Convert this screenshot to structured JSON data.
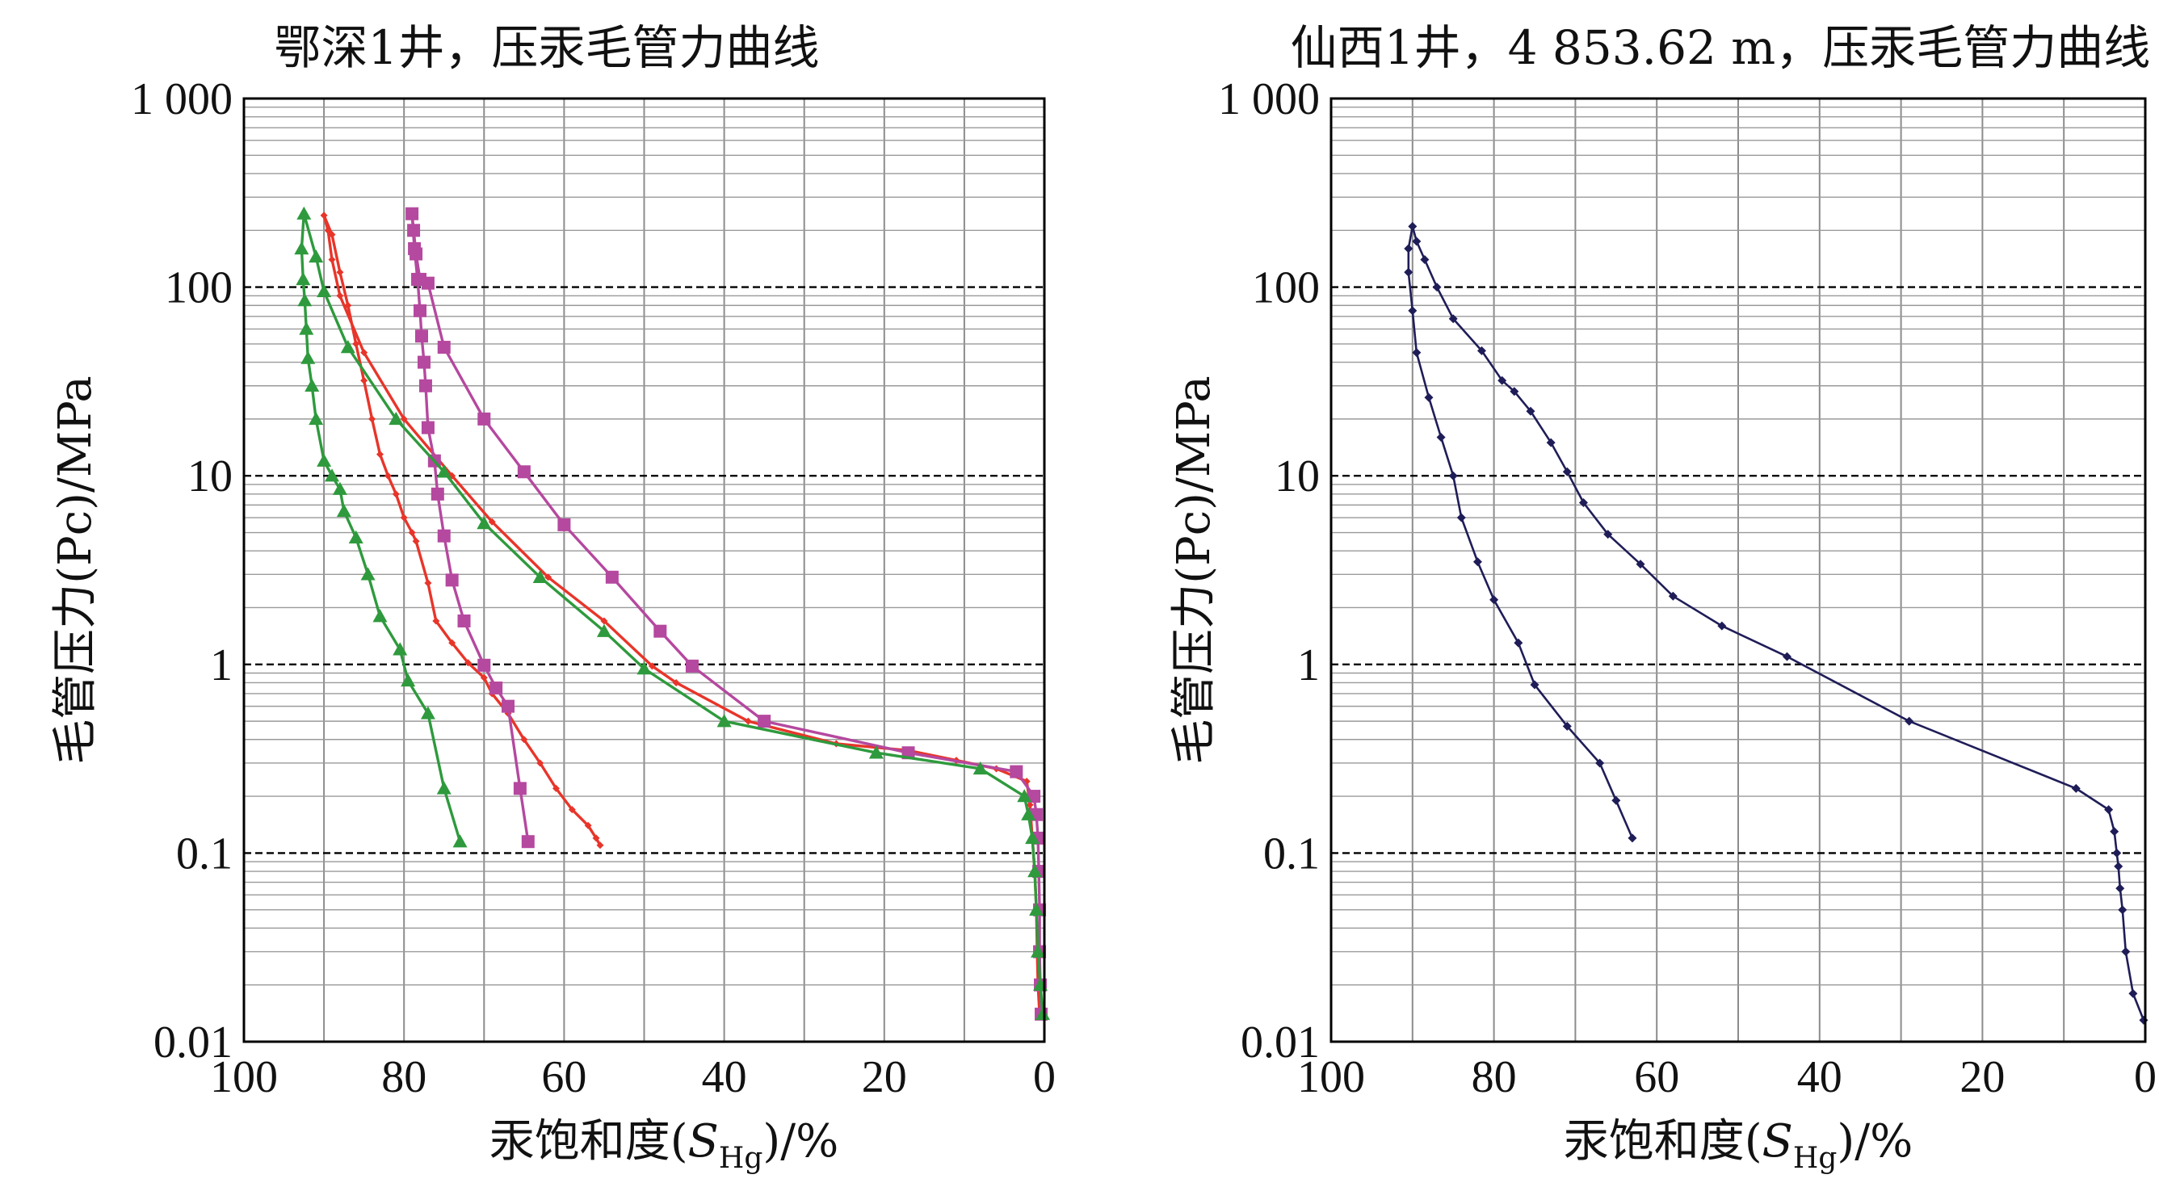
{
  "chart_data": [
    {
      "type": "line",
      "title": "鄂深1井，压汞毛管力曲线",
      "xlabel": {
        "prefix": "汞饱和度(",
        "symbol": "S",
        "subscript": "Hg",
        "suffix": ")/%"
      },
      "ylabel": "毛管压力(Pc)/MPa",
      "x_reversed": true,
      "xlim": [
        100,
        0
      ],
      "x_ticks": [
        100,
        80,
        60,
        40,
        20,
        0
      ],
      "y_scale": "log",
      "ylim": [
        0.01,
        1000
      ],
      "y_ticks": [
        {
          "value": 0.01,
          "label": "0.01"
        },
        {
          "value": 0.1,
          "label": "0.1"
        },
        {
          "value": 1,
          "label": "1"
        },
        {
          "value": 10,
          "label": "10"
        },
        {
          "value": 100,
          "label": "100"
        },
        {
          "value": 1000,
          "label": "1 000"
        }
      ],
      "grid": true,
      "colors": {
        "red": "#e8352a",
        "magenta": "#b5489f",
        "green": "#2e9a3d"
      },
      "series": [
        {
          "color": "red",
          "marker": "diamond",
          "points": [
            [
              0.6,
              0.014
            ],
            [
              0.8,
              0.02
            ],
            [
              0.9,
              0.03
            ],
            [
              1,
              0.05
            ],
            [
              1.2,
              0.08
            ],
            [
              1.5,
              0.12
            ],
            [
              1.8,
              0.18
            ],
            [
              2.2,
              0.24
            ],
            [
              6,
              0.28
            ],
            [
              11,
              0.31
            ],
            [
              17,
              0.35
            ],
            [
              26,
              0.38
            ],
            [
              37,
              0.5
            ],
            [
              46,
              0.8
            ],
            [
              49,
              0.98
            ],
            [
              55,
              1.7
            ],
            [
              62,
              2.9
            ],
            [
              69,
              5.7
            ],
            [
              74,
              10
            ],
            [
              80,
              20
            ],
            [
              85,
              45
            ],
            [
              88,
              90
            ],
            [
              89,
              140
            ],
            [
              89.5,
              200
            ],
            [
              90,
              240
            ],
            [
              89,
              190
            ],
            [
              88,
              120
            ],
            [
              87,
              80
            ],
            [
              86,
              50
            ],
            [
              85,
              32
            ],
            [
              84,
              20
            ],
            [
              83,
              13
            ],
            [
              82,
              10
            ],
            [
              81,
              8
            ],
            [
              80,
              6
            ],
            [
              79,
              5
            ],
            [
              78.5,
              4.5
            ],
            [
              77,
              2.7
            ],
            [
              76,
              1.7
            ],
            [
              74,
              1.3
            ],
            [
              72,
              1.02
            ],
            [
              70,
              0.85
            ],
            [
              69,
              0.7
            ],
            [
              67,
              0.55
            ],
            [
              65,
              0.4
            ],
            [
              63,
              0.3
            ],
            [
              61,
              0.22
            ],
            [
              59,
              0.17
            ],
            [
              57,
              0.14
            ],
            [
              56,
              0.12
            ],
            [
              55.5,
              0.11
            ]
          ]
        },
        {
          "color": "magenta",
          "marker": "square",
          "points": [
            [
              0.4,
              0.014
            ],
            [
              0.5,
              0.02
            ],
            [
              0.6,
              0.03
            ],
            [
              0.6,
              0.05
            ],
            [
              0.7,
              0.08
            ],
            [
              0.8,
              0.12
            ],
            [
              1,
              0.16
            ],
            [
              1.3,
              0.2
            ],
            [
              3.5,
              0.27
            ],
            [
              17,
              0.34
            ],
            [
              35,
              0.5
            ],
            [
              44,
              0.98
            ],
            [
              48,
              1.5
            ],
            [
              54,
              2.9
            ],
            [
              60,
              5.5
            ],
            [
              65,
              10.5
            ],
            [
              70,
              20
            ],
            [
              75,
              48
            ],
            [
              77,
              105
            ],
            [
              78,
              110
            ],
            [
              78.5,
              150
            ],
            [
              78.8,
              200
            ],
            [
              79,
              245
            ],
            [
              78.7,
              160
            ],
            [
              78.3,
              110
            ],
            [
              78,
              75
            ],
            [
              77.8,
              55
            ],
            [
              77.5,
              40
            ],
            [
              77.3,
              30
            ],
            [
              77,
              18
            ],
            [
              76.2,
              12
            ],
            [
              75.8,
              8
            ],
            [
              75,
              4.8
            ],
            [
              74,
              2.8
            ],
            [
              72.5,
              1.7
            ],
            [
              70,
              0.99
            ],
            [
              68.5,
              0.75
            ],
            [
              67,
              0.6
            ],
            [
              65.5,
              0.22
            ],
            [
              64.5,
              0.115
            ]
          ]
        },
        {
          "color": "green",
          "marker": "triangle",
          "points": [
            [
              0.2,
              0.014
            ],
            [
              0.5,
              0.02
            ],
            [
              0.8,
              0.03
            ],
            [
              1,
              0.05
            ],
            [
              1.2,
              0.08
            ],
            [
              1.5,
              0.12
            ],
            [
              2,
              0.16
            ],
            [
              2.5,
              0.2
            ],
            [
              8,
              0.28
            ],
            [
              21,
              0.34
            ],
            [
              40,
              0.5
            ],
            [
              50,
              0.95
            ],
            [
              55,
              1.5
            ],
            [
              63,
              2.9
            ],
            [
              70,
              5.6
            ],
            [
              75,
              10.5
            ],
            [
              81,
              20
            ],
            [
              87,
              48
            ],
            [
              90,
              95
            ],
            [
              91,
              145
            ],
            [
              92.5,
              245
            ],
            [
              92.8,
              160
            ],
            [
              92.6,
              110
            ],
            [
              92.4,
              85
            ],
            [
              92.2,
              60
            ],
            [
              92,
              42
            ],
            [
              91.5,
              30
            ],
            [
              91,
              20
            ],
            [
              90,
              12
            ],
            [
              89,
              10
            ],
            [
              88,
              8.5
            ],
            [
              87.5,
              6.5
            ],
            [
              86,
              4.7
            ],
            [
              84.5,
              3
            ],
            [
              83,
              1.8
            ],
            [
              80.5,
              1.2
            ],
            [
              79.5,
              0.82
            ],
            [
              77,
              0.55
            ],
            [
              75,
              0.22
            ],
            [
              73,
              0.115
            ]
          ]
        }
      ]
    },
    {
      "type": "line",
      "title": "仙西1井，4 853.62 m，压汞毛管力曲线",
      "xlabel": {
        "prefix": "汞饱和度(",
        "symbol": "S",
        "subscript": "Hg",
        "suffix": ")/%"
      },
      "ylabel": "毛管压力(Pc)/MPa",
      "x_reversed": true,
      "xlim": [
        100,
        0
      ],
      "x_ticks": [
        100,
        80,
        60,
        40,
        20,
        0
      ],
      "y_scale": "log",
      "ylim": [
        0.01,
        1000
      ],
      "y_ticks": [
        {
          "value": 0.01,
          "label": "0.01"
        },
        {
          "value": 0.1,
          "label": "0.1"
        },
        {
          "value": 1,
          "label": "1"
        },
        {
          "value": 10,
          "label": "10"
        },
        {
          "value": 100,
          "label": "100"
        },
        {
          "value": 1000,
          "label": "1 000"
        }
      ],
      "grid": true,
      "colors": {
        "navy": "#1f1d58"
      },
      "series": [
        {
          "color": "navy",
          "marker": "diamond",
          "points": [
            [
              0.2,
              0.013
            ],
            [
              1.5,
              0.018
            ],
            [
              2.4,
              0.03
            ],
            [
              2.8,
              0.05
            ],
            [
              3.1,
              0.065
            ],
            [
              3.3,
              0.085
            ],
            [
              3.5,
              0.1
            ],
            [
              3.8,
              0.13
            ],
            [
              4.5,
              0.17
            ],
            [
              8.5,
              0.22
            ],
            [
              29,
              0.5
            ],
            [
              44,
              1.1
            ],
            [
              52,
              1.6
            ],
            [
              58,
              2.3
            ],
            [
              62,
              3.4
            ],
            [
              66,
              4.9
            ],
            [
              69,
              7.2
            ],
            [
              71,
              10.5
            ],
            [
              73,
              15
            ],
            [
              75.5,
              22
            ],
            [
              77.5,
              28
            ],
            [
              79,
              32
            ],
            [
              81.5,
              46
            ],
            [
              85,
              68
            ],
            [
              87,
              100
            ],
            [
              88.5,
              140
            ],
            [
              89.5,
              175
            ],
            [
              90,
              210
            ],
            [
              90.5,
              160
            ],
            [
              90.5,
              120
            ],
            [
              90,
              75
            ],
            [
              89.5,
              45
            ],
            [
              88,
              26
            ],
            [
              86.5,
              16
            ],
            [
              85,
              10
            ],
            [
              84,
              6
            ],
            [
              82,
              3.5
            ],
            [
              80,
              2.2
            ],
            [
              77,
              1.3
            ],
            [
              75,
              0.78
            ],
            [
              71,
              0.47
            ],
            [
              67,
              0.3
            ],
            [
              65,
              0.19
            ],
            [
              63,
              0.12
            ]
          ]
        }
      ]
    }
  ]
}
